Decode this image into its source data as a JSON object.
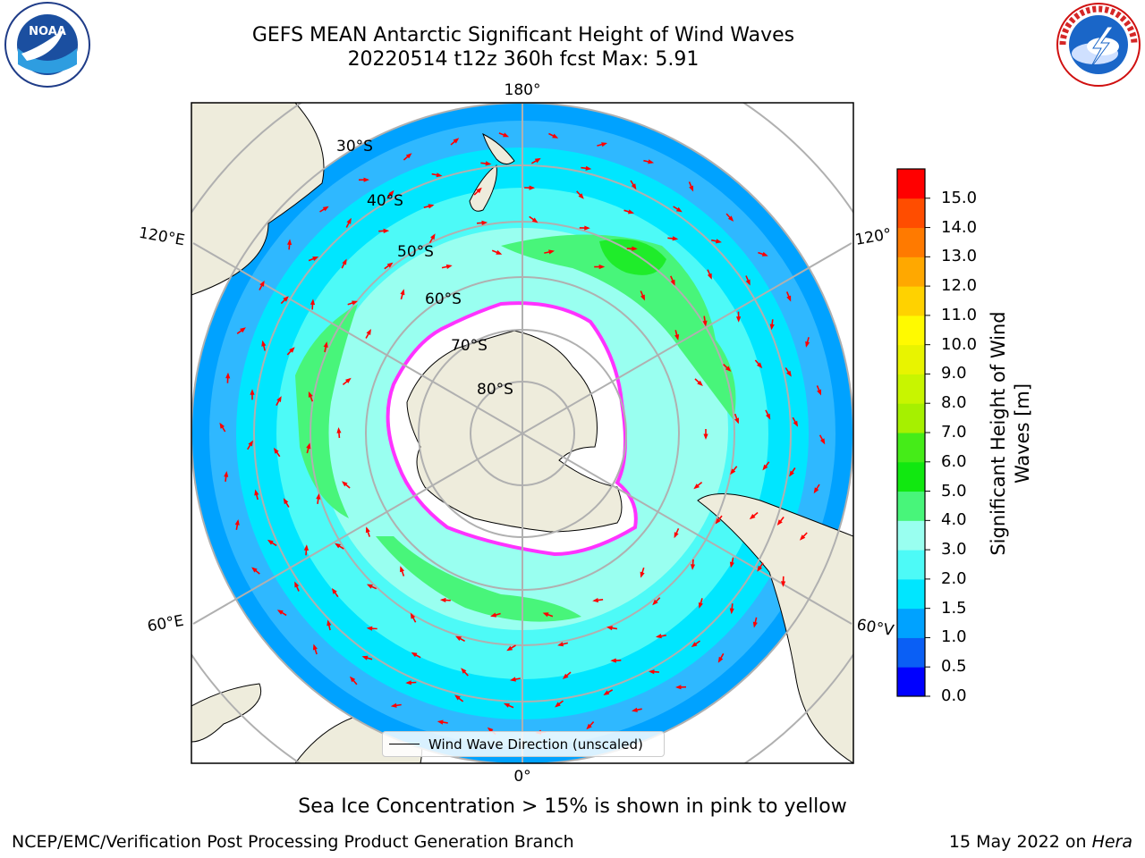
{
  "header": {
    "title_line1": "GEFS MEAN Antarctic Significant Height of Wind Waves",
    "title_line2": "20220514 t12z 360h fcst   Max: 5.91"
  },
  "logos": {
    "left": {
      "text": "NOAA",
      "ring_text": "NATIONAL OCEANIC AND ATMOSPHERIC ADMINISTRATION · U.S. DEPARTMENT OF COMMERCE"
    },
    "right": {
      "ring_text": "NATIONAL WEATHER SERVICE"
    }
  },
  "map": {
    "lon_labels": {
      "top": "180°",
      "bottom": "0°",
      "upper_left": "120°E",
      "lower_left": "60°E",
      "upper_right": "120°",
      "lower_right": "60°V"
    },
    "lat_labels": [
      "30°S",
      "40°S",
      "50°S",
      "60°S",
      "70°S",
      "80°S"
    ],
    "legend_label": "Wind Wave Direction (unscaled)"
  },
  "colorbar": {
    "title_line1": "Significant Height of Wind",
    "title_line2": "Waves [m]",
    "ticks": [
      "0.0",
      "0.5",
      "1.0",
      "1.5",
      "2.0",
      "3.0",
      "4.0",
      "5.0",
      "6.0",
      "7.0",
      "8.0",
      "9.0",
      "10.0",
      "11.0",
      "12.0",
      "13.0",
      "14.0",
      "15.0"
    ],
    "colors": [
      "#0000ff",
      "#0a5ff5",
      "#00a2ff",
      "#00e6ff",
      "#4dfaf7",
      "#99fff0",
      "#48f57a",
      "#11e810",
      "#45ec18",
      "#a6f000",
      "#c8f500",
      "#e8f400",
      "#fffa00",
      "#ffd200",
      "#ffa800",
      "#ff7a00",
      "#ff4d00",
      "#ff0000"
    ]
  },
  "colors": {
    "land": "#eeecdc",
    "grid": "#b0b0b0",
    "arrow": "#ff0000",
    "ice_edge": "#ff33ff"
  },
  "footer": {
    "note": "Sea Ice Concentration > 15% is shown in pink to yellow",
    "org": "NCEP/EMC/Verification Post Processing Product Generation Branch",
    "date": "15 May 2022 on",
    "machine": "Hera"
  }
}
